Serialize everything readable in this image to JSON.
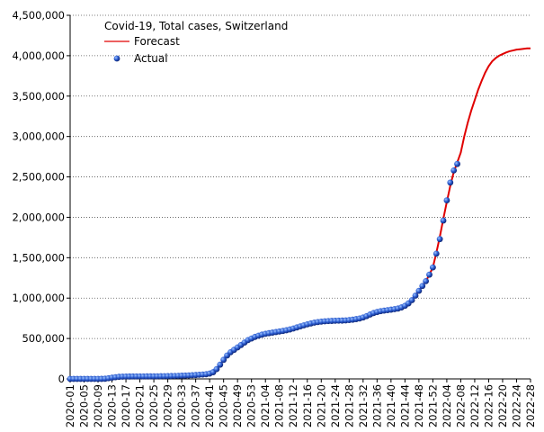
{
  "chart_data": {
    "type": "line",
    "title": "Covid-19, Total cases, Switzerland",
    "categories": [
      "2020-01",
      null,
      null,
      null,
      "2020-05",
      null,
      null,
      null,
      "2020-09",
      null,
      null,
      null,
      "2020-13",
      null,
      null,
      null,
      "2020-17",
      null,
      null,
      null,
      "2020-21",
      null,
      null,
      null,
      "2020-25",
      null,
      null,
      null,
      "2020-29",
      null,
      null,
      null,
      "2020-33",
      null,
      null,
      null,
      "2020-37",
      null,
      null,
      null,
      "2020-41",
      null,
      null,
      null,
      "2020-45",
      null,
      null,
      null,
      "2020-49",
      null,
      null,
      null,
      "2020-53",
      null,
      null,
      null,
      "2021-04",
      null,
      null,
      null,
      "2021-08",
      null,
      null,
      null,
      "2021-12",
      null,
      null,
      null,
      "2021-16",
      null,
      null,
      null,
      "2021-20",
      null,
      null,
      null,
      "2021-24",
      null,
      null,
      null,
      "2021-28",
      null,
      null,
      null,
      "2021-32",
      null,
      null,
      null,
      "2021-36",
      null,
      null,
      null,
      "2021-40",
      null,
      null,
      null,
      "2021-44",
      null,
      null,
      null,
      "2021-48",
      null,
      null,
      null,
      "2021-52",
      null,
      null,
      null,
      "2022-04",
      null,
      null,
      null,
      "2022-08",
      null,
      null,
      null,
      "2022-12",
      null,
      null,
      null,
      "2022-16",
      null,
      null,
      null,
      "2022-20",
      null,
      null,
      null,
      "2022-24",
      null,
      null,
      null,
      "2022-28"
    ],
    "series": [
      {
        "name": "Forecast",
        "color": "#e00000",
        "style": "line",
        "values": [
          0,
          0,
          0,
          0,
          0,
          0,
          0,
          0,
          100,
          500,
          2200,
          8000,
          15500,
          21000,
          25500,
          28000,
          29300,
          29900,
          30300,
          30600,
          30800,
          30900,
          31100,
          31200,
          31400,
          31700,
          32500,
          33300,
          34300,
          35400,
          36500,
          38000,
          39600,
          41300,
          43300,
          45700,
          48300,
          51500,
          54400,
          58000,
          66000,
          83000,
          121000,
          176000,
          236000,
          290000,
          330000,
          360000,
          390000,
          420000,
          450000,
          480000,
          500000,
          520000,
          535000,
          548000,
          558000,
          566000,
          573000,
          580000,
          587000,
          594000,
          602000,
          612000,
          624000,
          637000,
          650000,
          663000,
          675000,
          686000,
          696000,
          703000,
          709000,
          713000,
          716000,
          718000,
          720000,
          721000,
          722000,
          724000,
          728000,
          733000,
          740000,
          748000,
          760000,
          777000,
          797000,
          815000,
          828000,
          838000,
          845000,
          851000,
          857000,
          863000,
          871000,
          885000,
          905000,
          935000,
          975000,
          1030000,
          1090000,
          1150000,
          1210000,
          1290000,
          1380000,
          1560000,
          1760000,
          1980000,
          2190000,
          2390000,
          2560000,
          2680000,
          2800000,
          3000000,
          3170000,
          3320000,
          3450000,
          3580000,
          3690000,
          3790000,
          3870000,
          3930000,
          3970000,
          4000000,
          4020000,
          4040000,
          4055000,
          4065000,
          4075000,
          4080000,
          4085000,
          4090000,
          4090000
        ]
      },
      {
        "name": "Actual",
        "color": "#1f4fbf",
        "style": "dots",
        "values": [
          0,
          0,
          0,
          0,
          0,
          0,
          0,
          0,
          100,
          500,
          2200,
          8000,
          15500,
          21000,
          25500,
          28000,
          29300,
          29900,
          30300,
          30600,
          30800,
          30900,
          31100,
          31200,
          31400,
          31700,
          32500,
          33300,
          34300,
          35400,
          36500,
          38000,
          39600,
          41300,
          43300,
          45700,
          48300,
          51500,
          54400,
          58000,
          66000,
          83000,
          121000,
          176000,
          236000,
          290000,
          330000,
          360000,
          390000,
          420000,
          450000,
          480000,
          500000,
          520000,
          535000,
          548000,
          558000,
          566000,
          573000,
          580000,
          587000,
          594000,
          602000,
          612000,
          624000,
          637000,
          650000,
          663000,
          675000,
          686000,
          696000,
          703000,
          709000,
          713000,
          716000,
          718000,
          720000,
          721000,
          722000,
          724000,
          728000,
          733000,
          740000,
          748000,
          760000,
          777000,
          797000,
          815000,
          828000,
          838000,
          845000,
          851000,
          857000,
          863000,
          871000,
          885000,
          905000,
          935000,
          975000,
          1030000,
          1090000,
          1150000,
          1210000,
          1290000,
          1380000,
          1550000,
          1730000,
          1960000,
          2210000,
          2430000,
          2580000,
          2660000,
          null,
          null,
          null,
          null,
          null,
          null,
          null,
          null,
          null,
          null,
          null,
          null,
          null,
          null,
          null,
          null,
          null,
          null,
          null,
          null,
          null
        ]
      }
    ],
    "ylim": [
      0,
      4500000
    ],
    "yticks": [
      0,
      {
        "value": 500000,
        "label": "500,000"
      },
      {
        "value": 1000000,
        "label": "1,000,000"
      },
      {
        "value": 1500000,
        "label": "1,500,000"
      },
      {
        "value": 2000000,
        "label": "2,000,000"
      },
      {
        "value": 2500000,
        "label": "2,500,000"
      },
      {
        "value": 3000000,
        "label": "3,000,000"
      },
      {
        "value": 3500000,
        "label": "3,500,000"
      },
      {
        "value": 4000000,
        "label": "4,000,000"
      },
      {
        "value": 4500000,
        "label": "4,500,000"
      }
    ],
    "grid": true,
    "legend": "top-left"
  }
}
